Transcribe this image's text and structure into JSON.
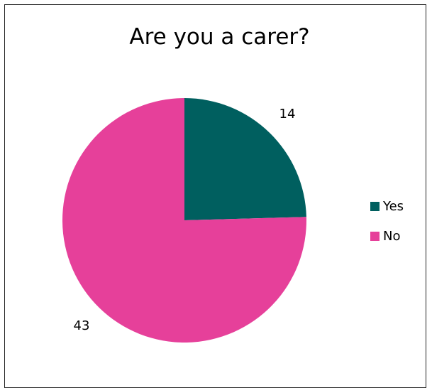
{
  "chart_data": {
    "type": "pie",
    "title": "Are you a carer?",
    "categories": [
      "Yes",
      "No"
    ],
    "values": [
      14,
      43
    ],
    "colors": [
      "#005F5F",
      "#E6409A"
    ],
    "legend_position": "right"
  }
}
